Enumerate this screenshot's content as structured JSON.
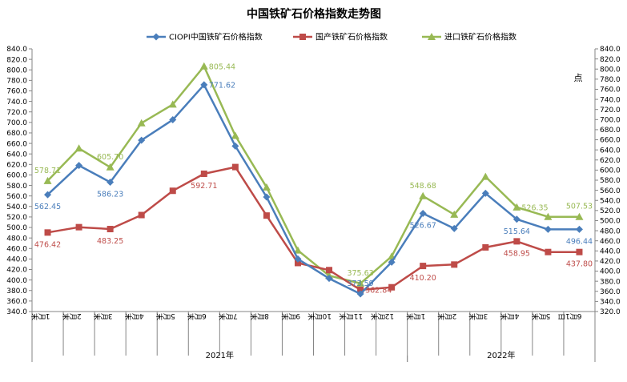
{
  "chart_data": {
    "type": "line",
    "title": "中国铁矿石价格指数走势图",
    "right_unit": "点",
    "categories": [
      "1月末",
      "2月末",
      "3月末",
      "4月末",
      "5月末",
      "6月末",
      "7月末",
      "8月末",
      "9月末",
      "10月末",
      "11月末",
      "12月末",
      "1月末",
      "2月末",
      "3月末",
      "4月末",
      "5月末",
      "6月1日"
    ],
    "year_groups": [
      {
        "label": "2021年",
        "start": 0,
        "end": 11
      },
      {
        "label": "2022年",
        "start": 12,
        "end": 17
      }
    ],
    "left_axis": {
      "min": 340,
      "max": 840,
      "step": 20
    },
    "right_axis": {
      "min": 320,
      "max": 840,
      "step": 20
    },
    "grid": false,
    "legend_position": "top",
    "series": [
      {
        "name": "CIOPI中国铁矿石价格指数",
        "color": "#4a7ebb",
        "marker": "diamond",
        "axis": "left",
        "values": [
          562.45,
          618,
          586.23,
          666,
          705,
          771.62,
          655,
          558,
          440,
          403,
          373.59,
          434,
          526.67,
          498,
          565,
          515.64,
          496.44,
          496.44
        ],
        "labels": [
          {
            "i": 0,
            "text": "562.45",
            "pos": "below"
          },
          {
            "i": 2,
            "text": "586.23",
            "pos": "below"
          },
          {
            "i": 5,
            "text": "771.62",
            "pos": "right"
          },
          {
            "i": 10,
            "text": "373.59",
            "pos": "above"
          },
          {
            "i": 12,
            "text": "526.67",
            "pos": "below"
          },
          {
            "i": 15,
            "text": "515.64",
            "pos": "below"
          },
          {
            "i": 17,
            "text": "496.44",
            "pos": "below"
          }
        ]
      },
      {
        "name": "国产铁矿石价格指数",
        "color": "#be4b48",
        "marker": "square",
        "axis": "right",
        "values": [
          476.42,
          487,
          483.25,
          511,
          559,
          592.71,
          606,
          510,
          416,
          402,
          362.84,
          368,
          410.2,
          413,
          447,
          458.95,
          437.8,
          437.8
        ],
        "labels": [
          {
            "i": 0,
            "text": "476.42",
            "pos": "below"
          },
          {
            "i": 2,
            "text": "483.25",
            "pos": "below"
          },
          {
            "i": 5,
            "text": "592.71",
            "pos": "below"
          },
          {
            "i": 10,
            "text": "362.84",
            "pos": "right"
          },
          {
            "i": 12,
            "text": "410.20",
            "pos": "below"
          },
          {
            "i": 15,
            "text": "458.95",
            "pos": "below"
          },
          {
            "i": 17,
            "text": "437.80",
            "pos": "below"
          }
        ]
      },
      {
        "name": "进口铁矿石价格指数",
        "color": "#98b954",
        "marker": "triangle",
        "axis": "right",
        "values": [
          578.71,
          643,
          605.7,
          693,
          730,
          805.44,
          668,
          566,
          441,
          391,
          375.63,
          429,
          548.68,
          512,
          587,
          526.35,
          507.53,
          507.53
        ],
        "labels": [
          {
            "i": 0,
            "text": "578.71",
            "pos": "above"
          },
          {
            "i": 2,
            "text": "605.70",
            "pos": "above"
          },
          {
            "i": 5,
            "text": "805.44",
            "pos": "right"
          },
          {
            "i": 10,
            "text": "375.63",
            "pos": "above"
          },
          {
            "i": 12,
            "text": "548.68",
            "pos": "above"
          },
          {
            "i": 15,
            "text": "526.35",
            "pos": "right"
          },
          {
            "i": 17,
            "text": "507.53",
            "pos": "above"
          }
        ]
      }
    ]
  }
}
